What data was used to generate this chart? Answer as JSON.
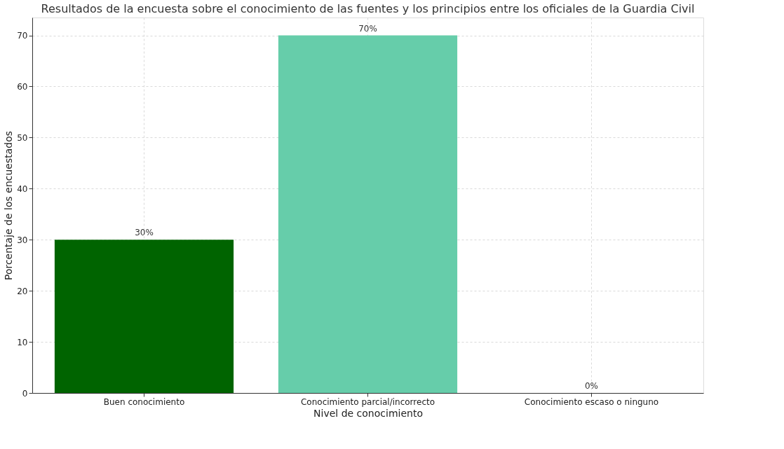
{
  "chart_data": {
    "type": "bar",
    "title": "Resultados de la encuesta sobre el conocimiento de las fuentes y los principios entre los oficiales de la Guardia Civil",
    "xlabel": "Nivel de conocimiento",
    "ylabel": "Porcentaje de los encuestados",
    "categories": [
      "Buen conocimiento",
      "Conocimiento parcial/incorrecto",
      "Conocimiento escaso o ninguno"
    ],
    "values": [
      30,
      70,
      0
    ],
    "colors": [
      "#006400",
      "#66cdaa",
      "#b0b0b0"
    ],
    "value_labels": [
      "30%",
      "70%",
      "0%"
    ],
    "ylim": [
      0,
      73.5
    ],
    "yticks": [
      0,
      10,
      20,
      30,
      40,
      50,
      60,
      70
    ],
    "grid": true
  }
}
